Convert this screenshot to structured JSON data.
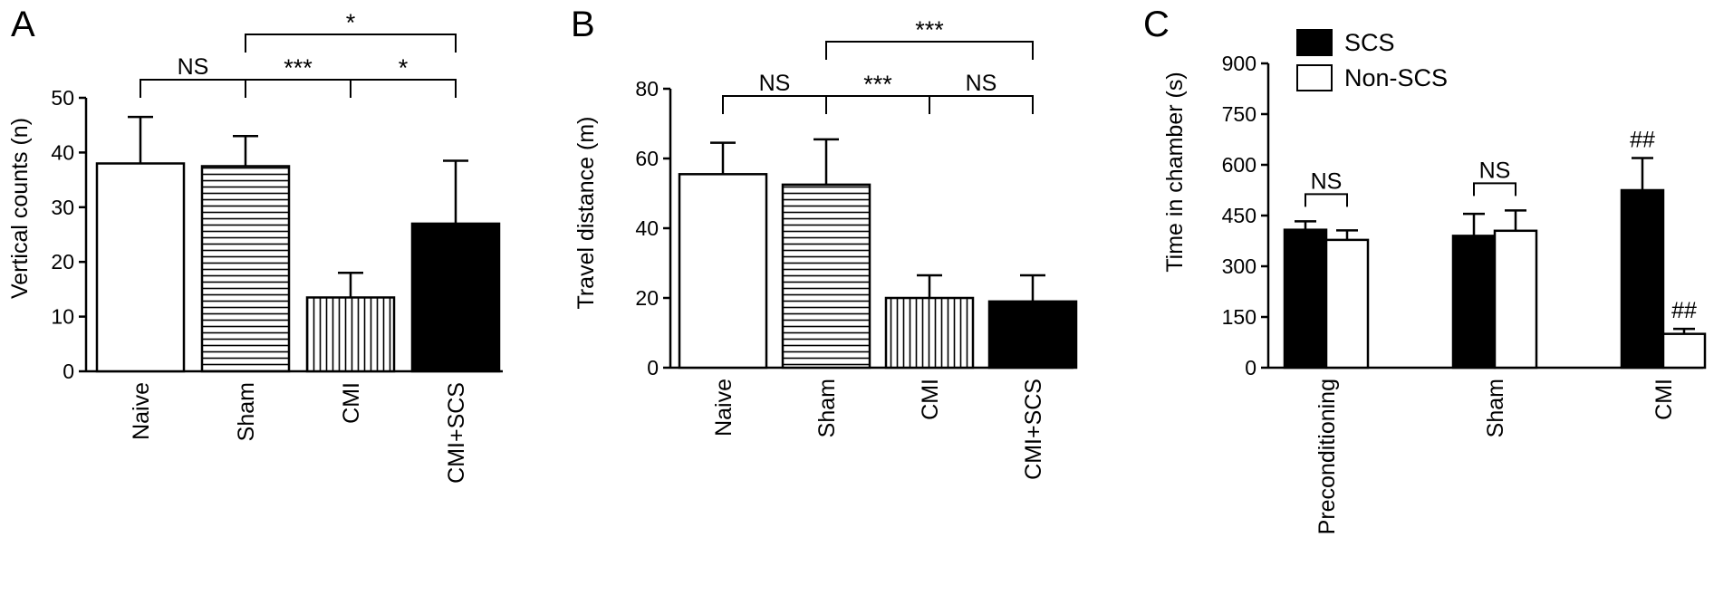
{
  "chart_data": [
    {
      "panel": "A",
      "type": "bar",
      "ylabel": "Vertical counts (n)",
      "ylim": [
        0,
        50
      ],
      "yticks": [
        0,
        10,
        20,
        30,
        40,
        50
      ],
      "categories": [
        "Naive",
        "Sham",
        "CMI",
        "CMI+SCS"
      ],
      "values": [
        38,
        37.5,
        13.5,
        27
      ],
      "errors": [
        8.5,
        5.5,
        4.5,
        11.5
      ],
      "patterns": [
        "white",
        "hstripes",
        "vstripes",
        "black"
      ],
      "comparisons": [
        {
          "from": 0,
          "to": 1,
          "label": "NS",
          "level": 1
        },
        {
          "from": 1,
          "to": 2,
          "label": "***",
          "level": 1
        },
        {
          "from": 2,
          "to": 3,
          "label": "*",
          "level": 1
        },
        {
          "from": 1,
          "to": 3,
          "label": "*",
          "level": 2
        }
      ]
    },
    {
      "panel": "B",
      "type": "bar",
      "ylabel": "Travel distance (m)",
      "ylim": [
        0,
        80
      ],
      "yticks": [
        0,
        20,
        40,
        60,
        80
      ],
      "categories": [
        "Naive",
        "Sham",
        "CMI",
        "CMI+SCS"
      ],
      "values": [
        55.5,
        52.5,
        20,
        19
      ],
      "errors": [
        9,
        13,
        6.5,
        7.5
      ],
      "patterns": [
        "white",
        "hstripes",
        "vstripes",
        "black"
      ],
      "comparisons": [
        {
          "from": 0,
          "to": 1,
          "label": "NS",
          "level": 1
        },
        {
          "from": 1,
          "to": 2,
          "label": "***",
          "level": 1
        },
        {
          "from": 2,
          "to": 3,
          "label": "NS",
          "level": 1
        },
        {
          "from": 1,
          "to": 3,
          "label": "***",
          "level": 2
        }
      ]
    },
    {
      "panel": "C",
      "type": "bar",
      "ylabel": "Time in chamber (s)",
      "ylim": [
        0,
        900
      ],
      "yticks": [
        0,
        150,
        300,
        450,
        600,
        750,
        900
      ],
      "categories": [
        "Preconditioning",
        "Sham",
        "CMI"
      ],
      "series": [
        {
          "name": "SCS",
          "color": "#000000",
          "values": [
            408,
            390,
            525
          ],
          "errors": [
            25,
            65,
            95
          ]
        },
        {
          "name": "Non-SCS",
          "color": "#ffffff",
          "values": [
            378,
            405,
            100
          ],
          "errors": [
            28,
            60,
            15
          ]
        }
      ],
      "group_labels": [
        {
          "group": 0,
          "label": "NS"
        },
        {
          "group": 1,
          "label": "NS"
        }
      ],
      "bar_labels": [
        {
          "group": 2,
          "series": 0,
          "label": "##"
        },
        {
          "group": 2,
          "series": 1,
          "label": "##"
        }
      ],
      "legend_position": "top-left"
    }
  ]
}
